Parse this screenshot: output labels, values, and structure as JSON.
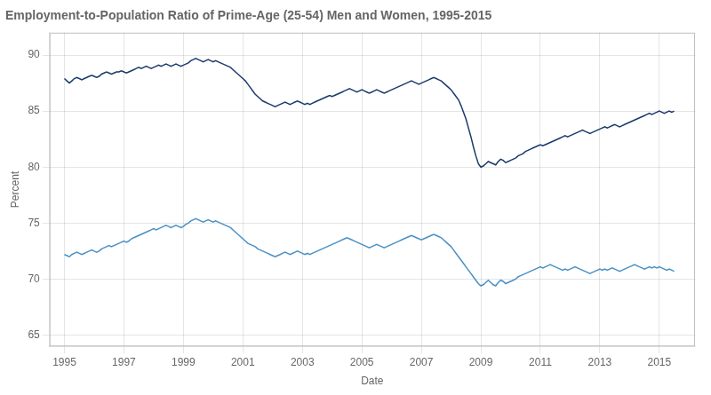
{
  "chart_data": {
    "type": "line",
    "title": "Employment-to-Population Ratio of Prime-Age (25-54) Men and Women, 1995-2015",
    "x_label": "Date",
    "y_label": "Percent",
    "xlim": [
      1994.5,
      2016.2
    ],
    "xticks": [
      1995,
      1997,
      1999,
      2001,
      2003,
      2005,
      2007,
      2009,
      2011,
      2013,
      2015
    ],
    "ylim": [
      64,
      92
    ],
    "yticks": [
      65,
      70,
      75,
      80,
      85,
      90
    ],
    "grid": true,
    "x": [
      1995.0,
      1995.083,
      1995.167,
      1995.25,
      1995.333,
      1995.417,
      1995.5,
      1995.583,
      1995.667,
      1995.75,
      1995.833,
      1995.917,
      1996.0,
      1996.083,
      1996.167,
      1996.25,
      1996.333,
      1996.417,
      1996.5,
      1996.583,
      1996.667,
      1996.75,
      1996.833,
      1996.917,
      1997.0,
      1997.083,
      1997.167,
      1997.25,
      1997.333,
      1997.417,
      1997.5,
      1997.583,
      1997.667,
      1997.75,
      1997.833,
      1997.917,
      1998.0,
      1998.083,
      1998.167,
      1998.25,
      1998.333,
      1998.417,
      1998.5,
      1998.583,
      1998.667,
      1998.75,
      1998.833,
      1998.917,
      1999.0,
      1999.083,
      1999.167,
      1999.25,
      1999.333,
      1999.417,
      1999.5,
      1999.583,
      1999.667,
      1999.75,
      1999.833,
      1999.917,
      2000.0,
      2000.083,
      2000.167,
      2000.25,
      2000.333,
      2000.417,
      2000.5,
      2000.583,
      2000.667,
      2000.75,
      2000.833,
      2000.917,
      2001.0,
      2001.083,
      2001.167,
      2001.25,
      2001.333,
      2001.417,
      2001.5,
      2001.583,
      2001.667,
      2001.75,
      2001.833,
      2001.917,
      2002.0,
      2002.083,
      2002.167,
      2002.25,
      2002.333,
      2002.417,
      2002.5,
      2002.583,
      2002.667,
      2002.75,
      2002.833,
      2002.917,
      2003.0,
      2003.083,
      2003.167,
      2003.25,
      2003.333,
      2003.417,
      2003.5,
      2003.583,
      2003.667,
      2003.75,
      2003.833,
      2003.917,
      2004.0,
      2004.083,
      2004.167,
      2004.25,
      2004.333,
      2004.417,
      2004.5,
      2004.583,
      2004.667,
      2004.75,
      2004.833,
      2004.917,
      2005.0,
      2005.083,
      2005.167,
      2005.25,
      2005.333,
      2005.417,
      2005.5,
      2005.583,
      2005.667,
      2005.75,
      2005.833,
      2005.917,
      2006.0,
      2006.083,
      2006.167,
      2006.25,
      2006.333,
      2006.417,
      2006.5,
      2006.583,
      2006.667,
      2006.75,
      2006.833,
      2006.917,
      2007.0,
      2007.083,
      2007.167,
      2007.25,
      2007.333,
      2007.417,
      2007.5,
      2007.583,
      2007.667,
      2007.75,
      2007.833,
      2007.917,
      2008.0,
      2008.083,
      2008.167,
      2008.25,
      2008.333,
      2008.417,
      2008.5,
      2008.583,
      2008.667,
      2008.75,
      2008.833,
      2008.917,
      2009.0,
      2009.083,
      2009.167,
      2009.25,
      2009.333,
      2009.417,
      2009.5,
      2009.583,
      2009.667,
      2009.75,
      2009.833,
      2009.917,
      2010.0,
      2010.083,
      2010.167,
      2010.25,
      2010.333,
      2010.417,
      2010.5,
      2010.583,
      2010.667,
      2010.75,
      2010.833,
      2010.917,
      2011.0,
      2011.083,
      2011.167,
      2011.25,
      2011.333,
      2011.417,
      2011.5,
      2011.583,
      2011.667,
      2011.75,
      2011.833,
      2011.917,
      2012.0,
      2012.083,
      2012.167,
      2012.25,
      2012.333,
      2012.417,
      2012.5,
      2012.583,
      2012.667,
      2012.75,
      2012.833,
      2012.917,
      2013.0,
      2013.083,
      2013.167,
      2013.25,
      2013.333,
      2013.417,
      2013.5,
      2013.583,
      2013.667,
      2013.75,
      2013.833,
      2013.917,
      2014.0,
      2014.083,
      2014.167,
      2014.25,
      2014.333,
      2014.417,
      2014.5,
      2014.583,
      2014.667,
      2014.75,
      2014.833,
      2014.917,
      2015.0,
      2015.083,
      2015.167,
      2015.25,
      2015.333,
      2015.417,
      2015.5
    ],
    "series": [
      {
        "color": "#1a3a6b",
        "values": [
          87.9,
          87.7,
          87.5,
          87.7,
          87.9,
          88.0,
          87.9,
          87.8,
          87.9,
          88.0,
          88.1,
          88.2,
          88.1,
          88.0,
          88.1,
          88.3,
          88.4,
          88.5,
          88.4,
          88.3,
          88.4,
          88.5,
          88.5,
          88.6,
          88.5,
          88.4,
          88.5,
          88.6,
          88.7,
          88.8,
          88.9,
          88.8,
          88.9,
          89.0,
          88.9,
          88.8,
          88.9,
          89.0,
          89.1,
          89.0,
          89.1,
          89.2,
          89.1,
          89.0,
          89.1,
          89.2,
          89.1,
          89.0,
          89.1,
          89.2,
          89.3,
          89.5,
          89.6,
          89.7,
          89.6,
          89.5,
          89.4,
          89.5,
          89.6,
          89.5,
          89.4,
          89.5,
          89.4,
          89.3,
          89.2,
          89.1,
          89.0,
          88.9,
          88.7,
          88.5,
          88.3,
          88.1,
          87.9,
          87.7,
          87.4,
          87.1,
          86.8,
          86.5,
          86.3,
          86.1,
          85.9,
          85.8,
          85.7,
          85.6,
          85.5,
          85.4,
          85.5,
          85.6,
          85.7,
          85.8,
          85.7,
          85.6,
          85.7,
          85.8,
          85.9,
          85.8,
          85.7,
          85.6,
          85.7,
          85.6,
          85.7,
          85.8,
          85.9,
          86.0,
          86.1,
          86.2,
          86.3,
          86.4,
          86.3,
          86.4,
          86.5,
          86.6,
          86.7,
          86.8,
          86.9,
          87.0,
          86.9,
          86.8,
          86.7,
          86.8,
          86.9,
          86.8,
          86.7,
          86.6,
          86.7,
          86.8,
          86.9,
          86.8,
          86.7,
          86.6,
          86.7,
          86.8,
          86.9,
          87.0,
          87.1,
          87.2,
          87.3,
          87.4,
          87.5,
          87.6,
          87.7,
          87.6,
          87.5,
          87.4,
          87.5,
          87.6,
          87.7,
          87.8,
          87.9,
          88.0,
          87.9,
          87.8,
          87.7,
          87.5,
          87.3,
          87.1,
          86.9,
          86.6,
          86.3,
          86.0,
          85.5,
          84.9,
          84.3,
          83.5,
          82.7,
          81.8,
          81.0,
          80.3,
          80.0,
          80.1,
          80.3,
          80.5,
          80.4,
          80.3,
          80.2,
          80.5,
          80.7,
          80.6,
          80.4,
          80.5,
          80.6,
          80.7,
          80.8,
          81.0,
          81.1,
          81.2,
          81.4,
          81.5,
          81.6,
          81.7,
          81.8,
          81.9,
          82.0,
          81.9,
          82.0,
          82.1,
          82.2,
          82.3,
          82.4,
          82.5,
          82.6,
          82.7,
          82.8,
          82.7,
          82.8,
          82.9,
          83.0,
          83.1,
          83.2,
          83.3,
          83.2,
          83.1,
          83.0,
          83.1,
          83.2,
          83.3,
          83.4,
          83.5,
          83.6,
          83.5,
          83.6,
          83.7,
          83.8,
          83.7,
          83.6,
          83.7,
          83.8,
          83.9,
          84.0,
          84.1,
          84.2,
          84.3,
          84.4,
          84.5,
          84.6,
          84.7,
          84.8,
          84.7,
          84.8,
          84.9,
          85.0,
          84.9,
          84.8,
          84.9,
          85.0,
          84.9,
          85.0
        ]
      },
      {
        "color": "#4a90c4",
        "values": [
          72.2,
          72.1,
          72.0,
          72.2,
          72.3,
          72.4,
          72.3,
          72.2,
          72.3,
          72.4,
          72.5,
          72.6,
          72.5,
          72.4,
          72.5,
          72.7,
          72.8,
          72.9,
          73.0,
          72.9,
          73.0,
          73.1,
          73.2,
          73.3,
          73.4,
          73.3,
          73.4,
          73.6,
          73.7,
          73.8,
          73.9,
          74.0,
          74.1,
          74.2,
          74.3,
          74.4,
          74.5,
          74.4,
          74.5,
          74.6,
          74.7,
          74.8,
          74.7,
          74.6,
          74.7,
          74.8,
          74.7,
          74.6,
          74.7,
          74.9,
          75.0,
          75.2,
          75.3,
          75.4,
          75.3,
          75.2,
          75.1,
          75.2,
          75.3,
          75.2,
          75.1,
          75.2,
          75.1,
          75.0,
          74.9,
          74.8,
          74.7,
          74.6,
          74.4,
          74.2,
          74.0,
          73.8,
          73.6,
          73.4,
          73.2,
          73.1,
          73.0,
          72.9,
          72.7,
          72.6,
          72.5,
          72.4,
          72.3,
          72.2,
          72.1,
          72.0,
          72.1,
          72.2,
          72.3,
          72.4,
          72.3,
          72.2,
          72.3,
          72.4,
          72.5,
          72.4,
          72.3,
          72.2,
          72.3,
          72.2,
          72.3,
          72.4,
          72.5,
          72.6,
          72.7,
          72.8,
          72.9,
          73.0,
          73.1,
          73.2,
          73.3,
          73.4,
          73.5,
          73.6,
          73.7,
          73.6,
          73.5,
          73.4,
          73.3,
          73.2,
          73.1,
          73.0,
          72.9,
          72.8,
          72.9,
          73.0,
          73.1,
          73.0,
          72.9,
          72.8,
          72.9,
          73.0,
          73.1,
          73.2,
          73.3,
          73.4,
          73.5,
          73.6,
          73.7,
          73.8,
          73.9,
          73.8,
          73.7,
          73.6,
          73.5,
          73.6,
          73.7,
          73.8,
          73.9,
          74.0,
          73.9,
          73.8,
          73.7,
          73.5,
          73.3,
          73.1,
          72.9,
          72.6,
          72.3,
          72.0,
          71.7,
          71.4,
          71.1,
          70.8,
          70.5,
          70.2,
          69.9,
          69.6,
          69.4,
          69.5,
          69.7,
          69.9,
          69.7,
          69.5,
          69.4,
          69.7,
          69.9,
          69.8,
          69.6,
          69.7,
          69.8,
          69.9,
          70.0,
          70.2,
          70.3,
          70.4,
          70.5,
          70.6,
          70.7,
          70.8,
          70.9,
          71.0,
          71.1,
          71.0,
          71.1,
          71.2,
          71.3,
          71.2,
          71.1,
          71.0,
          70.9,
          70.8,
          70.9,
          70.8,
          70.9,
          71.0,
          71.1,
          71.0,
          70.9,
          70.8,
          70.7,
          70.6,
          70.5,
          70.6,
          70.7,
          70.8,
          70.9,
          70.8,
          70.9,
          70.8,
          70.9,
          71.0,
          70.9,
          70.8,
          70.7,
          70.8,
          70.9,
          71.0,
          71.1,
          71.2,
          71.3,
          71.2,
          71.1,
          71.0,
          70.9,
          71.0,
          71.1,
          71.0,
          71.1,
          71.0,
          71.1,
          71.0,
          70.9,
          70.8,
          70.9,
          70.8,
          70.7
        ]
      }
    ]
  }
}
